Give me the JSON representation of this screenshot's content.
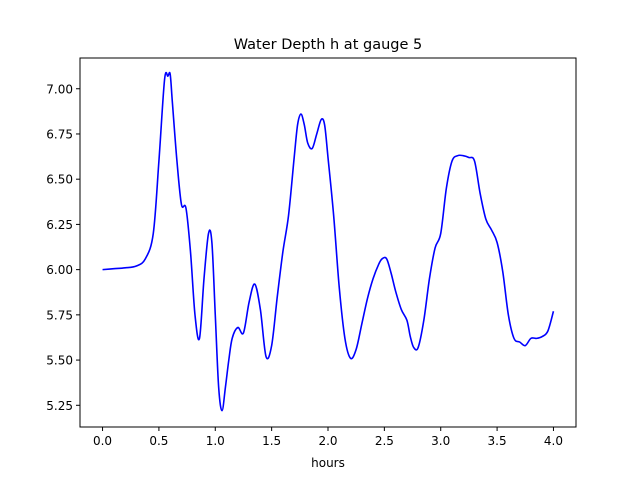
{
  "chart_data": {
    "type": "line",
    "title": "Water Depth h at gauge 5",
    "xlabel": "hours",
    "ylabel": "",
    "xlim": [
      -0.2,
      4.2
    ],
    "ylim": [
      5.13,
      7.17
    ],
    "xticks": [
      "0.0",
      "0.5",
      "1.0",
      "1.5",
      "2.0",
      "2.5",
      "3.0",
      "3.5",
      "4.0"
    ],
    "yticks": [
      "5.25",
      "5.50",
      "5.75",
      "6.00",
      "6.25",
      "6.50",
      "6.75",
      "7.00"
    ],
    "grid": false,
    "line_color": "#0000ff",
    "series": [
      {
        "x": [
          0.0,
          0.1,
          0.2,
          0.3,
          0.38,
          0.45,
          0.5,
          0.55,
          0.58,
          0.6,
          0.62,
          0.66,
          0.7,
          0.74,
          0.78,
          0.82,
          0.86,
          0.9,
          0.94,
          0.97,
          1.0,
          1.03,
          1.06,
          1.09,
          1.12,
          1.15,
          1.2,
          1.25,
          1.3,
          1.35,
          1.4,
          1.45,
          1.5,
          1.55,
          1.6,
          1.65,
          1.7,
          1.73,
          1.76,
          1.79,
          1.82,
          1.86,
          1.9,
          1.94,
          1.97,
          2.0,
          2.05,
          2.1,
          2.15,
          2.2,
          2.25,
          2.3,
          2.35,
          2.4,
          2.45,
          2.48,
          2.52,
          2.56,
          2.6,
          2.65,
          2.7,
          2.73,
          2.76,
          2.8,
          2.85,
          2.9,
          2.95,
          3.0,
          3.05,
          3.1,
          3.15,
          3.2,
          3.25,
          3.3,
          3.35,
          3.4,
          3.45,
          3.5,
          3.55,
          3.6,
          3.65,
          3.7,
          3.75,
          3.8,
          3.85,
          3.9,
          3.95,
          4.0
        ],
        "y": [
          6.0,
          6.005,
          6.01,
          6.02,
          6.06,
          6.2,
          6.6,
          7.05,
          7.07,
          7.08,
          6.92,
          6.6,
          6.36,
          6.34,
          6.1,
          5.75,
          5.62,
          5.95,
          6.2,
          6.15,
          5.75,
          5.35,
          5.22,
          5.35,
          5.5,
          5.62,
          5.68,
          5.65,
          5.82,
          5.92,
          5.78,
          5.52,
          5.58,
          5.85,
          6.1,
          6.3,
          6.62,
          6.8,
          6.86,
          6.8,
          6.7,
          6.67,
          6.75,
          6.83,
          6.8,
          6.62,
          6.3,
          5.9,
          5.62,
          5.51,
          5.56,
          5.7,
          5.84,
          5.95,
          6.03,
          6.06,
          6.06,
          5.98,
          5.88,
          5.78,
          5.72,
          5.63,
          5.57,
          5.57,
          5.72,
          5.95,
          6.12,
          6.2,
          6.45,
          6.6,
          6.63,
          6.63,
          6.62,
          6.6,
          6.42,
          6.28,
          6.22,
          6.15,
          5.99,
          5.75,
          5.62,
          5.6,
          5.58,
          5.62,
          5.62,
          5.63,
          5.66,
          5.77
        ]
      }
    ]
  }
}
